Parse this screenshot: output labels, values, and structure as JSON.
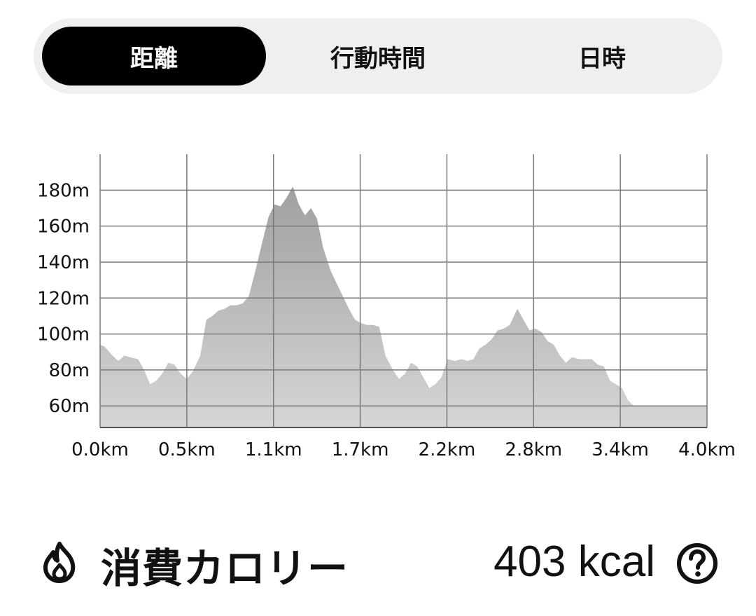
{
  "tabs": [
    {
      "label": "距離",
      "active": true
    },
    {
      "label": "行動時間",
      "active": false
    },
    {
      "label": "日時",
      "active": false
    }
  ],
  "chart_data": {
    "type": "area",
    "title": "",
    "xlabel": "",
    "ylabel": "",
    "x_tick_labels": [
      "0.0km",
      "0.5km",
      "1.1km",
      "1.7km",
      "2.2km",
      "2.8km",
      "3.4km",
      "4.0km"
    ],
    "y_tick_labels": [
      "60m",
      "80m",
      "100m",
      "120m",
      "140m",
      "160m",
      "180m"
    ],
    "y_ticks": [
      60,
      80,
      100,
      120,
      140,
      160,
      180
    ],
    "xlim": [
      0,
      4.0
    ],
    "ylim": [
      48,
      200
    ],
    "grid": true,
    "fill_color_top": "#a0a0a0",
    "fill_color_bottom": "#d6d6d6",
    "series": [
      {
        "x": [
          0.0,
          0.03,
          0.07,
          0.12,
          0.16,
          0.2,
          0.25,
          0.29,
          0.33,
          0.37,
          0.41,
          0.45,
          0.49,
          0.53,
          0.57,
          0.61,
          0.66,
          0.7,
          0.74,
          0.78,
          0.82,
          0.86,
          0.9,
          0.94,
          0.98,
          1.02,
          1.06,
          1.11,
          1.15,
          1.19,
          1.23,
          1.27,
          1.31,
          1.35,
          1.39,
          1.43,
          1.47,
          1.52,
          1.56,
          1.6,
          1.64,
          1.68,
          1.72,
          1.76,
          1.8,
          1.84,
          1.88,
          1.93,
          1.97,
          2.01,
          2.05,
          2.09,
          2.13,
          2.17,
          2.21,
          2.25,
          2.29,
          2.34,
          2.38,
          2.42,
          2.46,
          2.5,
          2.54,
          2.58,
          2.62,
          2.66,
          2.7,
          2.75,
          2.79,
          2.83,
          2.87,
          2.91,
          2.95,
          2.99,
          3.03,
          3.07,
          3.11,
          3.16,
          3.2,
          3.24,
          3.28,
          3.32,
          3.36,
          3.4,
          3.44,
          3.48,
          3.52,
          3.57,
          3.61,
          3.65,
          3.69,
          3.73,
          3.77,
          3.81,
          3.85,
          3.89,
          3.93,
          3.98,
          4.0
        ],
        "y": [
          94,
          93,
          89,
          85,
          88,
          87,
          86,
          80,
          72,
          74,
          78,
          84,
          83,
          78,
          75,
          79,
          88,
          108,
          110,
          113,
          114,
          116,
          116,
          117,
          121,
          134,
          148,
          165,
          172,
          171,
          176,
          182,
          172,
          166,
          170,
          164,
          148,
          135,
          128,
          121,
          114,
          108,
          106,
          105,
          105,
          104,
          88,
          80,
          75,
          78,
          84,
          82,
          76,
          70,
          72,
          76,
          86,
          85,
          86,
          85,
          86,
          92,
          94,
          97,
          102,
          103,
          105,
          114,
          108,
          102,
          103,
          101,
          96,
          94,
          88,
          84,
          87,
          86,
          86,
          86,
          83,
          82,
          74,
          72,
          70,
          63,
          60,
          60,
          60,
          60,
          60,
          60,
          60,
          60,
          60,
          60,
          60,
          60,
          60
        ]
      }
    ]
  },
  "calories": {
    "icon": "flame-icon",
    "label": "消費カロリー",
    "value": "403 kcal",
    "help_icon": "question-circle-icon"
  }
}
